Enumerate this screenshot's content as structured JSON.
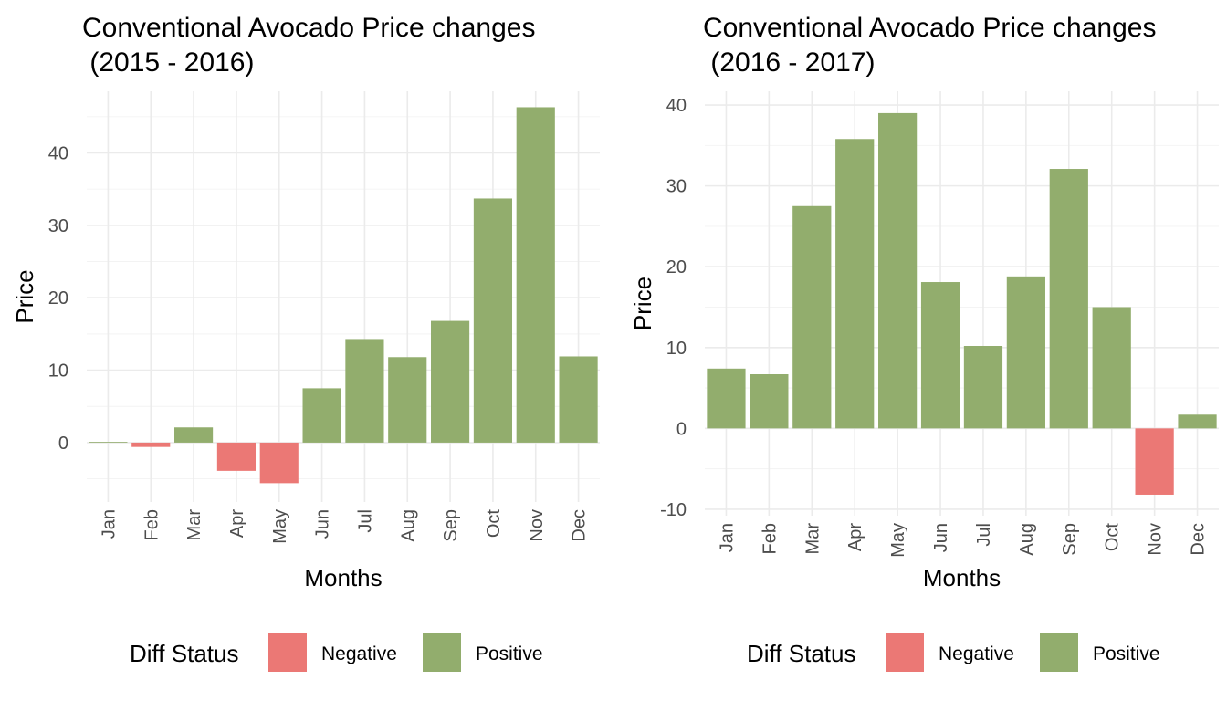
{
  "chart_data": [
    {
      "type": "bar",
      "title": "Conventional Avocado Price changes\n (2015 - 2016)",
      "xlabel": "Months",
      "ylabel": "Price",
      "categories": [
        "Jan",
        "Feb",
        "Mar",
        "Apr",
        "May",
        "Jun",
        "Jul",
        "Aug",
        "Sep",
        "Oct",
        "Nov",
        "Dec"
      ],
      "values": [
        0.1,
        -0.6,
        2.1,
        -3.9,
        -5.6,
        7.5,
        14.3,
        11.8,
        16.8,
        33.7,
        46.3,
        11.9
      ],
      "status": [
        "Positive",
        "Negative",
        "Positive",
        "Negative",
        "Negative",
        "Positive",
        "Positive",
        "Positive",
        "Positive",
        "Positive",
        "Positive",
        "Positive"
      ],
      "yticks": [
        0,
        10,
        20,
        30,
        40
      ],
      "ylim": [
        -8.2,
        48.5
      ],
      "grid": true,
      "legend": {
        "title": "Diff Status",
        "position": "bottom",
        "items": [
          {
            "label": "Negative",
            "color": "#EB7875"
          },
          {
            "label": "Positive",
            "color": "#92AD6D"
          }
        ]
      }
    },
    {
      "type": "bar",
      "title": "Conventional Avocado Price changes\n (2016 - 2017)",
      "xlabel": "Months",
      "ylabel": "Price",
      "categories": [
        "Jan",
        "Feb",
        "Mar",
        "Apr",
        "May",
        "Jun",
        "Jul",
        "Aug",
        "Sep",
        "Oct",
        "Nov",
        "Dec"
      ],
      "values": [
        7.4,
        6.7,
        27.5,
        35.8,
        39.0,
        18.1,
        10.2,
        18.8,
        32.1,
        15.0,
        -8.2,
        1.7
      ],
      "status": [
        "Positive",
        "Positive",
        "Positive",
        "Positive",
        "Positive",
        "Positive",
        "Positive",
        "Positive",
        "Positive",
        "Positive",
        "Negative",
        "Positive"
      ],
      "yticks": [
        -10,
        0,
        10,
        20,
        30,
        40
      ],
      "ylim": [
        -10.8,
        41.7
      ],
      "grid": true,
      "legend": {
        "title": "Diff Status",
        "position": "bottom",
        "items": [
          {
            "label": "Negative",
            "color": "#EB7875"
          },
          {
            "label": "Positive",
            "color": "#92AD6D"
          }
        ]
      }
    }
  ],
  "colors": {
    "Negative": "#EB7875",
    "Positive": "#92AD6D",
    "grid": "#EBEBEB",
    "tick_text": "#4D4D4D"
  }
}
